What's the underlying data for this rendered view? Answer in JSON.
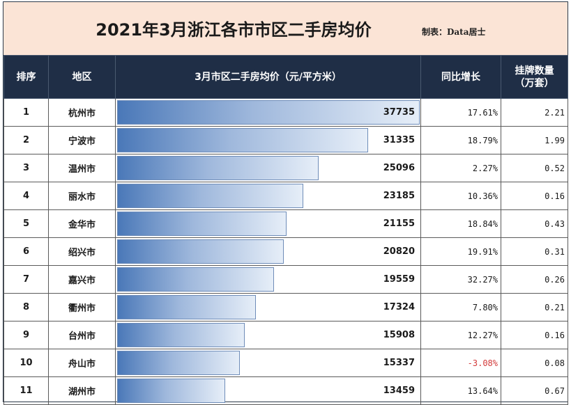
{
  "header": {
    "title": "2021年3月浙江各市市区二手房均价",
    "credit": "制表：Data居士"
  },
  "columns": {
    "rank": "排序",
    "city": "地区",
    "price": "3月市区二手房均价（元/平方米）",
    "growth": "同比增长",
    "listings_line1": "挂牌数量",
    "listings_line2": "（万套）"
  },
  "chart_data": {
    "type": "table",
    "max_price": 37735,
    "rows": [
      {
        "rank": "1",
        "city": "杭州市",
        "price": 37735,
        "growth": "17.61%",
        "listings": "2.21"
      },
      {
        "rank": "2",
        "city": "宁波市",
        "price": 31335,
        "growth": "18.79%",
        "listings": "1.99"
      },
      {
        "rank": "3",
        "city": "温州市",
        "price": 25096,
        "growth": "2.27%",
        "listings": "0.52"
      },
      {
        "rank": "4",
        "city": "丽水市",
        "price": 23185,
        "growth": "10.36%",
        "listings": "0.16"
      },
      {
        "rank": "5",
        "city": "金华市",
        "price": 21155,
        "growth": "18.84%",
        "listings": "0.43"
      },
      {
        "rank": "6",
        "city": "绍兴市",
        "price": 20820,
        "growth": "19.91%",
        "listings": "0.31"
      },
      {
        "rank": "7",
        "city": "嘉兴市",
        "price": 19559,
        "growth": "32.27%",
        "listings": "0.26"
      },
      {
        "rank": "8",
        "city": "衢州市",
        "price": 17324,
        "growth": "7.80%",
        "listings": "0.21"
      },
      {
        "rank": "9",
        "city": "台州市",
        "price": 15908,
        "growth": "12.27%",
        "listings": "0.16"
      },
      {
        "rank": "10",
        "city": "舟山市",
        "price": 15337,
        "growth": "-3.08%",
        "listings": "0.08"
      },
      {
        "rank": "11",
        "city": "湖州市",
        "price": 13459,
        "growth": "13.64%",
        "listings": "0.67"
      }
    ]
  },
  "colors": {
    "header_bg": "#1f2e46",
    "title_bg": "#fbe4d6",
    "bar_start": "#4a78b8",
    "bar_end": "#e6eef8",
    "negative": "#d33a3a"
  }
}
